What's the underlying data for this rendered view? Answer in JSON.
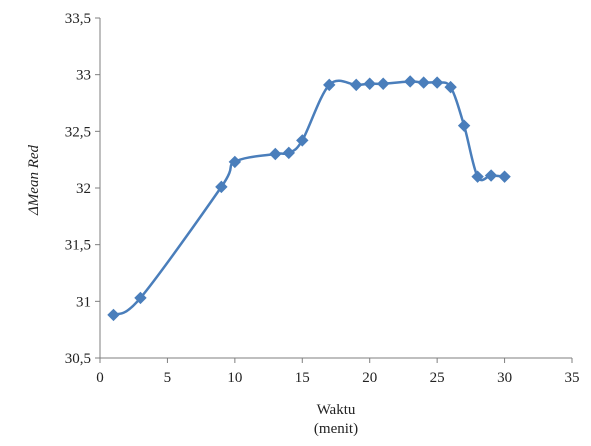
{
  "chart_data": {
    "type": "line",
    "xlabel": "Waktu",
    "xlabel_sub": "(menit)",
    "ylabel": "ΔMean Red",
    "xlim": [
      0,
      35
    ],
    "ylim": [
      30.5,
      33.5
    ],
    "x_ticks": [
      "0",
      "5",
      "10",
      "15",
      "20",
      "25",
      "30",
      "35"
    ],
    "y_ticks": [
      "30,5",
      "31",
      "31,5",
      "32",
      "32,5",
      "33",
      "33,5"
    ],
    "grid": false,
    "legend": "none",
    "series": [
      {
        "color": "#4a7ebb",
        "marker": "diamond",
        "x": [
          1,
          3,
          9,
          10,
          13,
          14,
          15,
          17,
          19,
          20,
          21,
          23,
          24,
          25,
          26,
          27,
          28,
          29,
          30
        ],
        "y": [
          30.88,
          31.03,
          32.01,
          32.23,
          32.3,
          32.31,
          32.42,
          32.91,
          32.91,
          32.92,
          32.92,
          32.94,
          32.93,
          32.93,
          32.89,
          32.55,
          32.1,
          32.11,
          32.1
        ]
      }
    ]
  }
}
